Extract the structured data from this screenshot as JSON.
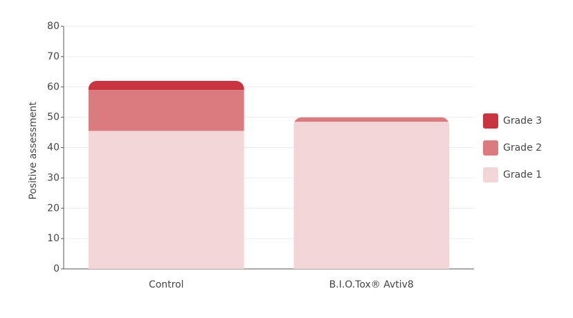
{
  "chart_data": {
    "type": "stacked_bar",
    "y_label": "Positive assessment",
    "categories": [
      "Control",
      "B.I.O.Tox® Avtiv8"
    ],
    "series": [
      {
        "name": "Grade 1",
        "color": "#f2d6d7",
        "values": [
          45.5,
          48.5
        ]
      },
      {
        "name": "Grade 2",
        "color": "#d97b7f",
        "values": [
          13.5,
          1.5
        ]
      },
      {
        "name": "Grade 3",
        "color": "#c8343f",
        "values": [
          3,
          0
        ]
      }
    ],
    "ylim": [
      0,
      80
    ],
    "yticks": [
      0,
      10,
      20,
      30,
      40,
      50,
      60,
      70,
      80
    ],
    "grid": true,
    "legend": "right"
  }
}
